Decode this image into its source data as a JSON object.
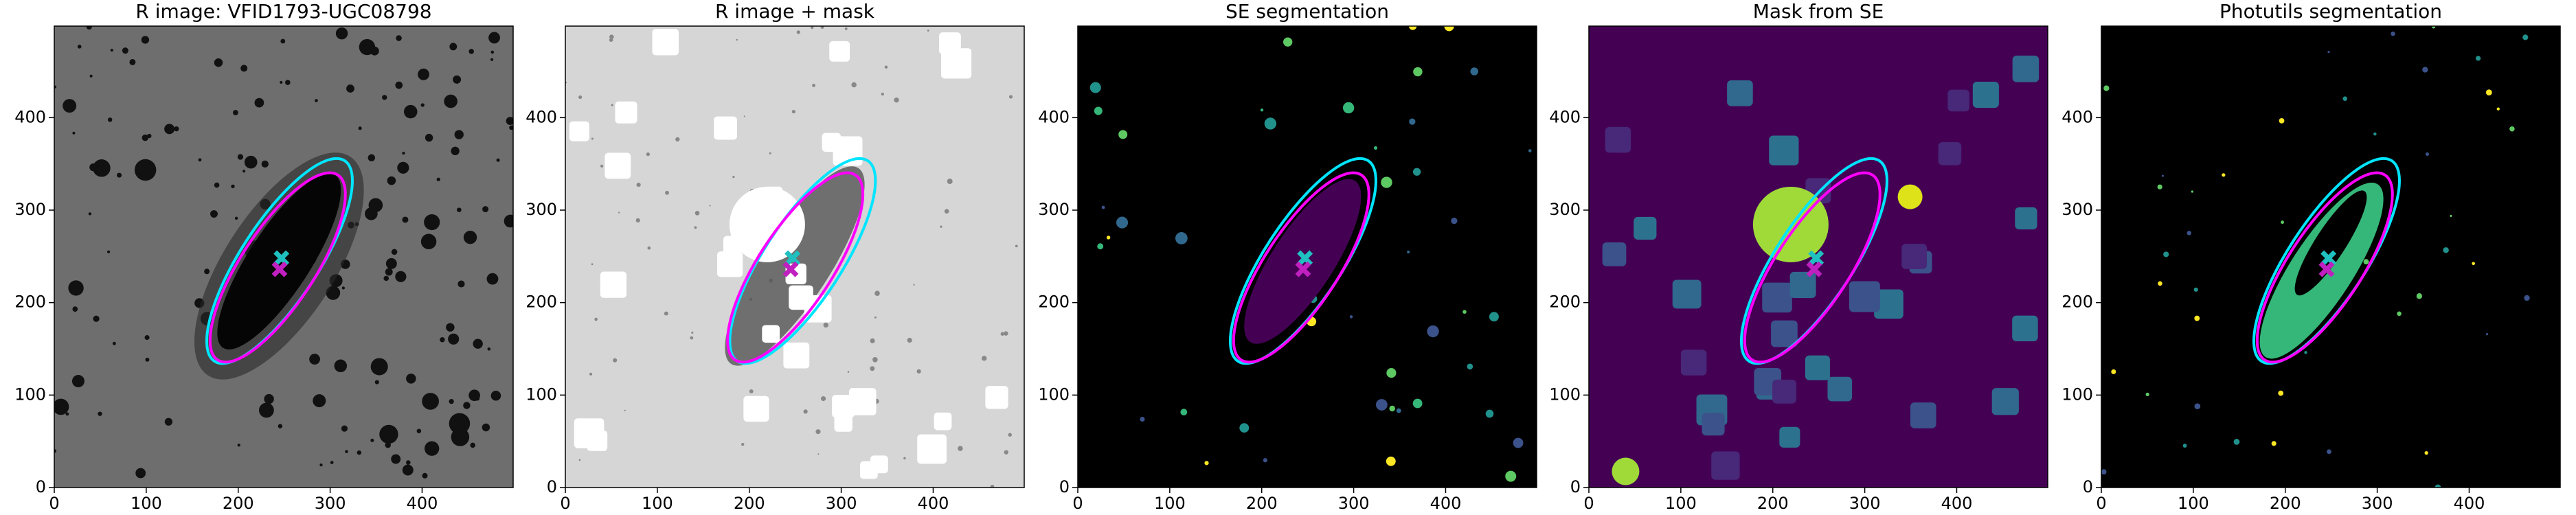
{
  "chart_data": [
    {
      "type": "image",
      "title": "R image: VFID1793-UGC08798",
      "background": "#6e6e6e",
      "xlim": [
        0,
        499
      ],
      "ylim": [
        0,
        499
      ],
      "xticks": [
        0,
        100,
        200,
        300,
        400
      ],
      "yticks": [
        0,
        100,
        200,
        300,
        400
      ],
      "ellipses": [
        {
          "color": "#00e5ff",
          "cx": 245,
          "cy": 245,
          "rx": 130,
          "ry": 42,
          "angle": 57
        },
        {
          "color": "#ff00ff",
          "cx": 243,
          "cy": 238,
          "rx": 120,
          "ry": 40,
          "angle": 57
        }
      ],
      "markers": [
        {
          "color": "#20c0c0",
          "x": 247,
          "y": 248
        },
        {
          "color": "#c020c0",
          "x": 245,
          "y": 236
        }
      ]
    },
    {
      "type": "image",
      "title": "R image + mask",
      "background": "#d6d6d6",
      "xlim": [
        0,
        499
      ],
      "ylim": [
        0,
        499
      ],
      "xticks": [
        0,
        100,
        200,
        300,
        400
      ],
      "yticks": [
        0,
        100,
        200,
        300,
        400
      ],
      "ellipses": [
        {
          "color": "#00e5ff",
          "cx": 258,
          "cy": 245,
          "rx": 130,
          "ry": 42,
          "angle": 57
        },
        {
          "color": "#ff00ff",
          "cx": 250,
          "cy": 238,
          "rx": 120,
          "ry": 40,
          "angle": 57
        }
      ],
      "markers": [
        {
          "color": "#20c0c0",
          "x": 247,
          "y": 248
        },
        {
          "color": "#c020c0",
          "x": 245,
          "y": 236
        }
      ]
    },
    {
      "type": "image",
      "title": "SE segmentation",
      "background": "#000000",
      "xlim": [
        0,
        499
      ],
      "ylim": [
        0,
        499
      ],
      "xticks": [
        0,
        100,
        200,
        300,
        400
      ],
      "yticks": [
        0,
        100,
        200,
        300,
        400
      ],
      "ellipses": [
        {
          "color": "#00e5ff",
          "cx": 245,
          "cy": 245,
          "rx": 130,
          "ry": 42,
          "angle": 57
        },
        {
          "color": "#ff00ff",
          "cx": 243,
          "cy": 238,
          "rx": 120,
          "ry": 40,
          "angle": 57
        }
      ],
      "markers": [
        {
          "color": "#20c0c0",
          "x": 247,
          "y": 248
        },
        {
          "color": "#c020c0",
          "x": 245,
          "y": 236
        }
      ]
    },
    {
      "type": "image",
      "title": "Mask from SE",
      "background": "#440154",
      "xlim": [
        0,
        499
      ],
      "ylim": [
        0,
        499
      ],
      "xticks": [
        0,
        100,
        200,
        300,
        400
      ],
      "yticks": [
        0,
        100,
        200,
        300,
        400
      ],
      "ellipses": [
        {
          "color": "#00e5ff",
          "cx": 245,
          "cy": 245,
          "rx": 130,
          "ry": 42,
          "angle": 57
        },
        {
          "color": "#ff00ff",
          "cx": 243,
          "cy": 238,
          "rx": 120,
          "ry": 40,
          "angle": 57
        }
      ],
      "markers": [
        {
          "color": "#20c0c0",
          "x": 247,
          "y": 248
        },
        {
          "color": "#c020c0",
          "x": 245,
          "y": 236
        }
      ]
    },
    {
      "type": "image",
      "title": "Photutils segmentation",
      "background": "#000000",
      "xlim": [
        0,
        499
      ],
      "ylim": [
        0,
        499
      ],
      "xticks": [
        0,
        100,
        200,
        300,
        400
      ],
      "yticks": [
        0,
        100,
        200,
        300,
        400
      ],
      "ellipses": [
        {
          "color": "#00e5ff",
          "cx": 245,
          "cy": 245,
          "rx": 130,
          "ry": 42,
          "angle": 57
        },
        {
          "color": "#ff00ff",
          "cx": 243,
          "cy": 238,
          "rx": 120,
          "ry": 40,
          "angle": 57
        }
      ],
      "markers": [
        {
          "color": "#20c0c0",
          "x": 247,
          "y": 248
        },
        {
          "color": "#c020c0",
          "x": 245,
          "y": 236
        }
      ]
    }
  ]
}
